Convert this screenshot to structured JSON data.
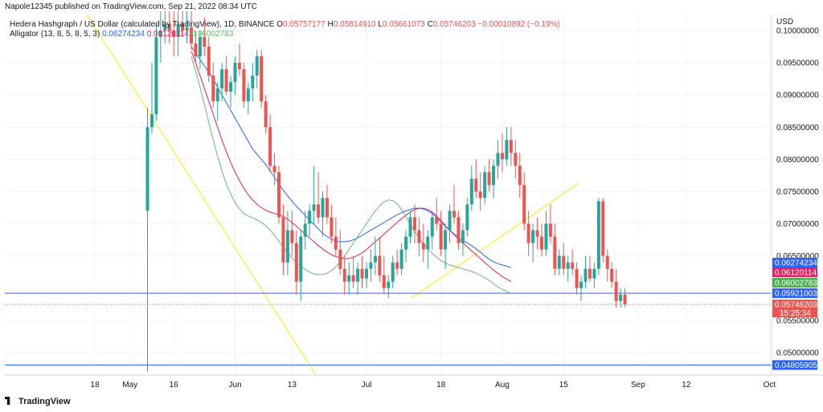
{
  "header": {
    "published": "Napole12345 published on TradingView.com, Sep 21, 2022 08:34 UTC",
    "symbol_line": "Hedera Hashgraph / US Dollar (calculated by TradingView), 1D, BINANCE",
    "ohlc": [
      {
        "key": "O",
        "value": "0.05757177"
      },
      {
        "key": "H",
        "value": "0.05814910"
      },
      {
        "key": "L",
        "value": "0.05661073"
      },
      {
        "key": "C",
        "value": "0.05746203"
      },
      {
        "key": "",
        "value": "−0.00010892 (−0.19%)"
      }
    ],
    "indicator_label": "Alligator (13, 8, 5, 8, 5, 3)",
    "indicator_values": [
      "0.06274234",
      "0.06120114",
      "0.06002783"
    ]
  },
  "footer": {
    "brand": "TradingView"
  },
  "colors": {
    "up": "#26a69a",
    "down": "#ef5350",
    "jaw": "#2962ff",
    "teeth": "#e91e63",
    "lips": "#66bb6a",
    "trend": "#ffeb3b",
    "hline": "#2962ff",
    "price": "#ef5350"
  },
  "chart_data": {
    "type": "candlestick",
    "currency": "USD",
    "ylim": [
      0.0465,
      0.1025
    ],
    "y_ticks": [
      "0.10000000",
      "0.09500000",
      "0.09000000",
      "0.08500000",
      "0.08000000",
      "0.07500000",
      "0.07000000",
      "0.06500000",
      "0.05500000",
      "0.05000000"
    ],
    "x_ticks": [
      {
        "label": "18",
        "i": -12
      },
      {
        "label": "May",
        "i": -4
      },
      {
        "label": "16",
        "i": 6
      },
      {
        "label": "Jun",
        "i": 20
      },
      {
        "label": "13",
        "i": 33
      },
      {
        "label": "Jul",
        "i": 50
      },
      {
        "label": "18",
        "i": 67
      },
      {
        "label": "Aug",
        "i": 81
      },
      {
        "label": "15",
        "i": 95
      },
      {
        "label": "Sep",
        "i": 112
      },
      {
        "label": "12",
        "i": 123
      },
      {
        "label": "Oct",
        "i": 142
      }
    ],
    "candles": [
      [
        0.072,
        0.088,
        0.047,
        0.085
      ],
      [
        0.085,
        0.095,
        0.084,
        0.087
      ],
      [
        0.087,
        0.101,
        0.086,
        0.099
      ],
      [
        0.099,
        0.103,
        0.095,
        0.1
      ],
      [
        0.1,
        0.103,
        0.098,
        0.101
      ],
      [
        0.101,
        0.103,
        0.098,
        0.1
      ],
      [
        0.1,
        0.103,
        0.096,
        0.099
      ],
      [
        0.099,
        0.103,
        0.096,
        0.101
      ],
      [
        0.101,
        0.103,
        0.099,
        0.1
      ],
      [
        0.1,
        0.103,
        0.098,
        0.1005
      ],
      [
        0.1005,
        0.103,
        0.097,
        0.098
      ],
      [
        0.098,
        0.1,
        0.095,
        0.096
      ],
      [
        0.096,
        0.1,
        0.094,
        0.099
      ],
      [
        0.099,
        0.102,
        0.096,
        0.0975
      ],
      [
        0.0975,
        0.099,
        0.092,
        0.093
      ],
      [
        0.093,
        0.095,
        0.088,
        0.089
      ],
      [
        0.089,
        0.092,
        0.086,
        0.091
      ],
      [
        0.091,
        0.095,
        0.089,
        0.094
      ],
      [
        0.094,
        0.096,
        0.09,
        0.0905
      ],
      [
        0.0905,
        0.093,
        0.088,
        0.092
      ],
      [
        0.092,
        0.096,
        0.09,
        0.095
      ],
      [
        0.095,
        0.098,
        0.093,
        0.094
      ],
      [
        0.094,
        0.095,
        0.088,
        0.089
      ],
      [
        0.089,
        0.092,
        0.087,
        0.091
      ],
      [
        0.091,
        0.095,
        0.089,
        0.093
      ],
      [
        0.093,
        0.097,
        0.091,
        0.096
      ],
      [
        0.096,
        0.097,
        0.088,
        0.089
      ],
      [
        0.089,
        0.09,
        0.084,
        0.085
      ],
      [
        0.085,
        0.087,
        0.078,
        0.079
      ],
      [
        0.079,
        0.081,
        0.076,
        0.078
      ],
      [
        0.078,
        0.079,
        0.07,
        0.071
      ],
      [
        0.071,
        0.073,
        0.062,
        0.064
      ],
      [
        0.064,
        0.072,
        0.062,
        0.069
      ],
      [
        0.069,
        0.072,
        0.065,
        0.067
      ],
      [
        0.067,
        0.069,
        0.059,
        0.061
      ],
      [
        0.061,
        0.069,
        0.058,
        0.068
      ],
      [
        0.068,
        0.072,
        0.066,
        0.07
      ],
      [
        0.07,
        0.073,
        0.068,
        0.072
      ],
      [
        0.072,
        0.079,
        0.07,
        0.073
      ],
      [
        0.073,
        0.078,
        0.07,
        0.071
      ],
      [
        0.071,
        0.075,
        0.068,
        0.074
      ],
      [
        0.074,
        0.076,
        0.07,
        0.071
      ],
      [
        0.071,
        0.073,
        0.067,
        0.068
      ],
      [
        0.068,
        0.071,
        0.065,
        0.066
      ],
      [
        0.066,
        0.069,
        0.062,
        0.063
      ],
      [
        0.063,
        0.065,
        0.059,
        0.061
      ],
      [
        0.061,
        0.064,
        0.059,
        0.062
      ],
      [
        0.062,
        0.065,
        0.06,
        0.061
      ],
      [
        0.061,
        0.064,
        0.059,
        0.063
      ],
      [
        0.063,
        0.065,
        0.06,
        0.0615
      ],
      [
        0.0615,
        0.064,
        0.06,
        0.063
      ],
      [
        0.063,
        0.066,
        0.061,
        0.064
      ],
      [
        0.064,
        0.068,
        0.062,
        0.065
      ],
      [
        0.065,
        0.068,
        0.061,
        0.062
      ],
      [
        0.062,
        0.065,
        0.059,
        0.06
      ],
      [
        0.06,
        0.062,
        0.0585,
        0.061
      ],
      [
        0.061,
        0.065,
        0.06,
        0.064
      ],
      [
        0.064,
        0.066,
        0.062,
        0.063
      ],
      [
        0.063,
        0.067,
        0.062,
        0.066
      ],
      [
        0.066,
        0.069,
        0.064,
        0.068
      ],
      [
        0.068,
        0.072,
        0.067,
        0.071
      ],
      [
        0.071,
        0.073,
        0.067,
        0.069
      ],
      [
        0.069,
        0.071,
        0.065,
        0.067
      ],
      [
        0.067,
        0.07,
        0.064,
        0.066
      ],
      [
        0.066,
        0.069,
        0.063,
        0.068
      ],
      [
        0.068,
        0.072,
        0.066,
        0.071
      ],
      [
        0.071,
        0.074,
        0.069,
        0.07
      ],
      [
        0.07,
        0.072,
        0.065,
        0.066
      ],
      [
        0.066,
        0.07,
        0.063,
        0.069
      ],
      [
        0.069,
        0.073,
        0.067,
        0.072
      ],
      [
        0.072,
        0.076,
        0.07,
        0.071
      ],
      [
        0.071,
        0.072,
        0.066,
        0.067
      ],
      [
        0.067,
        0.07,
        0.065,
        0.069
      ],
      [
        0.069,
        0.074,
        0.068,
        0.073
      ],
      [
        0.073,
        0.079,
        0.072,
        0.077
      ],
      [
        0.077,
        0.08,
        0.074,
        0.075
      ],
      [
        0.075,
        0.078,
        0.072,
        0.074
      ],
      [
        0.074,
        0.079,
        0.073,
        0.078
      ],
      [
        0.078,
        0.08,
        0.075,
        0.076
      ],
      [
        0.076,
        0.08,
        0.074,
        0.079
      ],
      [
        0.079,
        0.083,
        0.077,
        0.081
      ],
      [
        0.081,
        0.084,
        0.078,
        0.08
      ],
      [
        0.08,
        0.085,
        0.079,
        0.083
      ],
      [
        0.083,
        0.085,
        0.079,
        0.081
      ],
      [
        0.081,
        0.083,
        0.077,
        0.079
      ],
      [
        0.079,
        0.081,
        0.074,
        0.076
      ],
      [
        0.076,
        0.078,
        0.069,
        0.07
      ],
      [
        0.07,
        0.072,
        0.065,
        0.067
      ],
      [
        0.067,
        0.07,
        0.064,
        0.069
      ],
      [
        0.069,
        0.071,
        0.066,
        0.068
      ],
      [
        0.068,
        0.07,
        0.065,
        0.066
      ],
      [
        0.066,
        0.072,
        0.065,
        0.07
      ],
      [
        0.07,
        0.073,
        0.067,
        0.068
      ],
      [
        0.068,
        0.07,
        0.062,
        0.063
      ],
      [
        0.063,
        0.066,
        0.062,
        0.065
      ],
      [
        0.065,
        0.067,
        0.062,
        0.063
      ],
      [
        0.063,
        0.065,
        0.061,
        0.064
      ],
      [
        0.064,
        0.066,
        0.062,
        0.063
      ],
      [
        0.063,
        0.064,
        0.059,
        0.06
      ],
      [
        0.06,
        0.062,
        0.058,
        0.061
      ],
      [
        0.061,
        0.065,
        0.06,
        0.063
      ],
      [
        0.063,
        0.065,
        0.061,
        0.0615
      ],
      [
        0.0615,
        0.064,
        0.06,
        0.063
      ],
      [
        0.063,
        0.074,
        0.062,
        0.0735
      ],
      [
        0.0735,
        0.074,
        0.064,
        0.065
      ],
      [
        0.065,
        0.066,
        0.061,
        0.063
      ],
      [
        0.063,
        0.064,
        0.06,
        0.061
      ],
      [
        0.061,
        0.063,
        0.057,
        0.058
      ],
      [
        0.058,
        0.06,
        0.057,
        0.059
      ],
      [
        0.059,
        0.06,
        0.057,
        0.0575
      ]
    ],
    "jaw": [
      0.0975,
      0.0965,
      0.0955,
      0.0945,
      0.0935,
      0.0925,
      0.0912,
      0.09,
      0.0888,
      0.0876,
      0.0864,
      0.0852,
      0.084,
      0.0828,
      0.0816,
      0.0808,
      0.08,
      0.0792,
      0.0782,
      0.0772,
      0.0762,
      0.0752,
      0.0743,
      0.0735,
      0.0727,
      0.072,
      0.0713,
      0.0706,
      0.0699,
      0.0692,
      0.0685,
      0.068,
      0.0676,
      0.0673,
      0.0672,
      0.0672,
      0.0673,
      0.0675,
      0.0678,
      0.0682,
      0.0686,
      0.069,
      0.0694,
      0.0698,
      0.0702,
      0.0706,
      0.071,
      0.0714,
      0.0717,
      0.072,
      0.0722,
      0.0724,
      0.0724,
      0.0723,
      0.072,
      0.0716,
      0.071,
      0.0703,
      0.0696,
      0.069,
      0.0684,
      0.0679,
      0.0674,
      0.067,
      0.0666,
      0.0661,
      0.0656,
      0.065,
      0.0645,
      0.0641,
      0.0638,
      0.0636,
      0.0634,
      0.0632
    ],
    "teeth": [
      0.0968,
      0.095,
      0.093,
      0.091,
      0.089,
      0.087,
      0.085,
      0.083,
      0.0812,
      0.0795,
      0.078,
      0.0767,
      0.0755,
      0.0745,
      0.0737,
      0.073,
      0.0725,
      0.0721,
      0.0718,
      0.0716,
      0.0714,
      0.0711,
      0.0707,
      0.0702,
      0.0696,
      0.069,
      0.0684,
      0.0678,
      0.0672,
      0.0666,
      0.0661,
      0.0656,
      0.0652,
      0.0649,
      0.0647,
      0.0646,
      0.0646,
      0.0648,
      0.0651,
      0.0655,
      0.066,
      0.0666,
      0.0672,
      0.0678,
      0.0684,
      0.069,
      0.0696,
      0.0702,
      0.0708,
      0.0713,
      0.0718,
      0.0722,
      0.0724,
      0.0724,
      0.0722,
      0.0718,
      0.0712,
      0.0705,
      0.0697,
      0.069,
      0.0683,
      0.0676,
      0.067,
      0.0664,
      0.0658,
      0.0652,
      0.0646,
      0.064,
      0.0634,
      0.0628,
      0.0623,
      0.0618,
      0.0614,
      0.061
    ],
    "lips": [
      0.096,
      0.0938,
      0.0912,
      0.0885,
      0.0857,
      0.083,
      0.0805,
      0.0782,
      0.0762,
      0.0746,
      0.0733,
      0.0723,
      0.0716,
      0.0712,
      0.0709,
      0.0706,
      0.0702,
      0.0697,
      0.069,
      0.0682,
      0.0673,
      0.0664,
      0.0655,
      0.0647,
      0.064,
      0.0634,
      0.0629,
      0.0625,
      0.0622,
      0.0621,
      0.0621,
      0.0623,
      0.0627,
      0.0633,
      0.0641,
      0.065,
      0.066,
      0.067,
      0.068,
      0.069,
      0.07,
      0.071,
      0.072,
      0.0728,
      0.0734,
      0.0737,
      0.0736,
      0.0731,
      0.0722,
      0.0711,
      0.0699,
      0.0688,
      0.0678,
      0.0669,
      0.0661,
      0.0654,
      0.0648,
      0.0643,
      0.0639,
      0.0636,
      0.0634,
      0.0632,
      0.063,
      0.0628,
      0.0626,
      0.0623,
      0.062,
      0.0616,
      0.0612,
      0.0607,
      0.0602,
      0.0598,
      0.0595,
      0.0592
    ]
  },
  "price_labels": {
    "jaw": "0.06274234",
    "teeth": "0.06120114",
    "hline1": "0.05921003",
    "lips": "0.06002783",
    "current": "0.05746203",
    "countdown": "15:25:34",
    "hline2": "0.04805905"
  },
  "levels": {
    "hline1": 0.05921003,
    "hline2": 0.04805905,
    "current": 0.05746203
  }
}
